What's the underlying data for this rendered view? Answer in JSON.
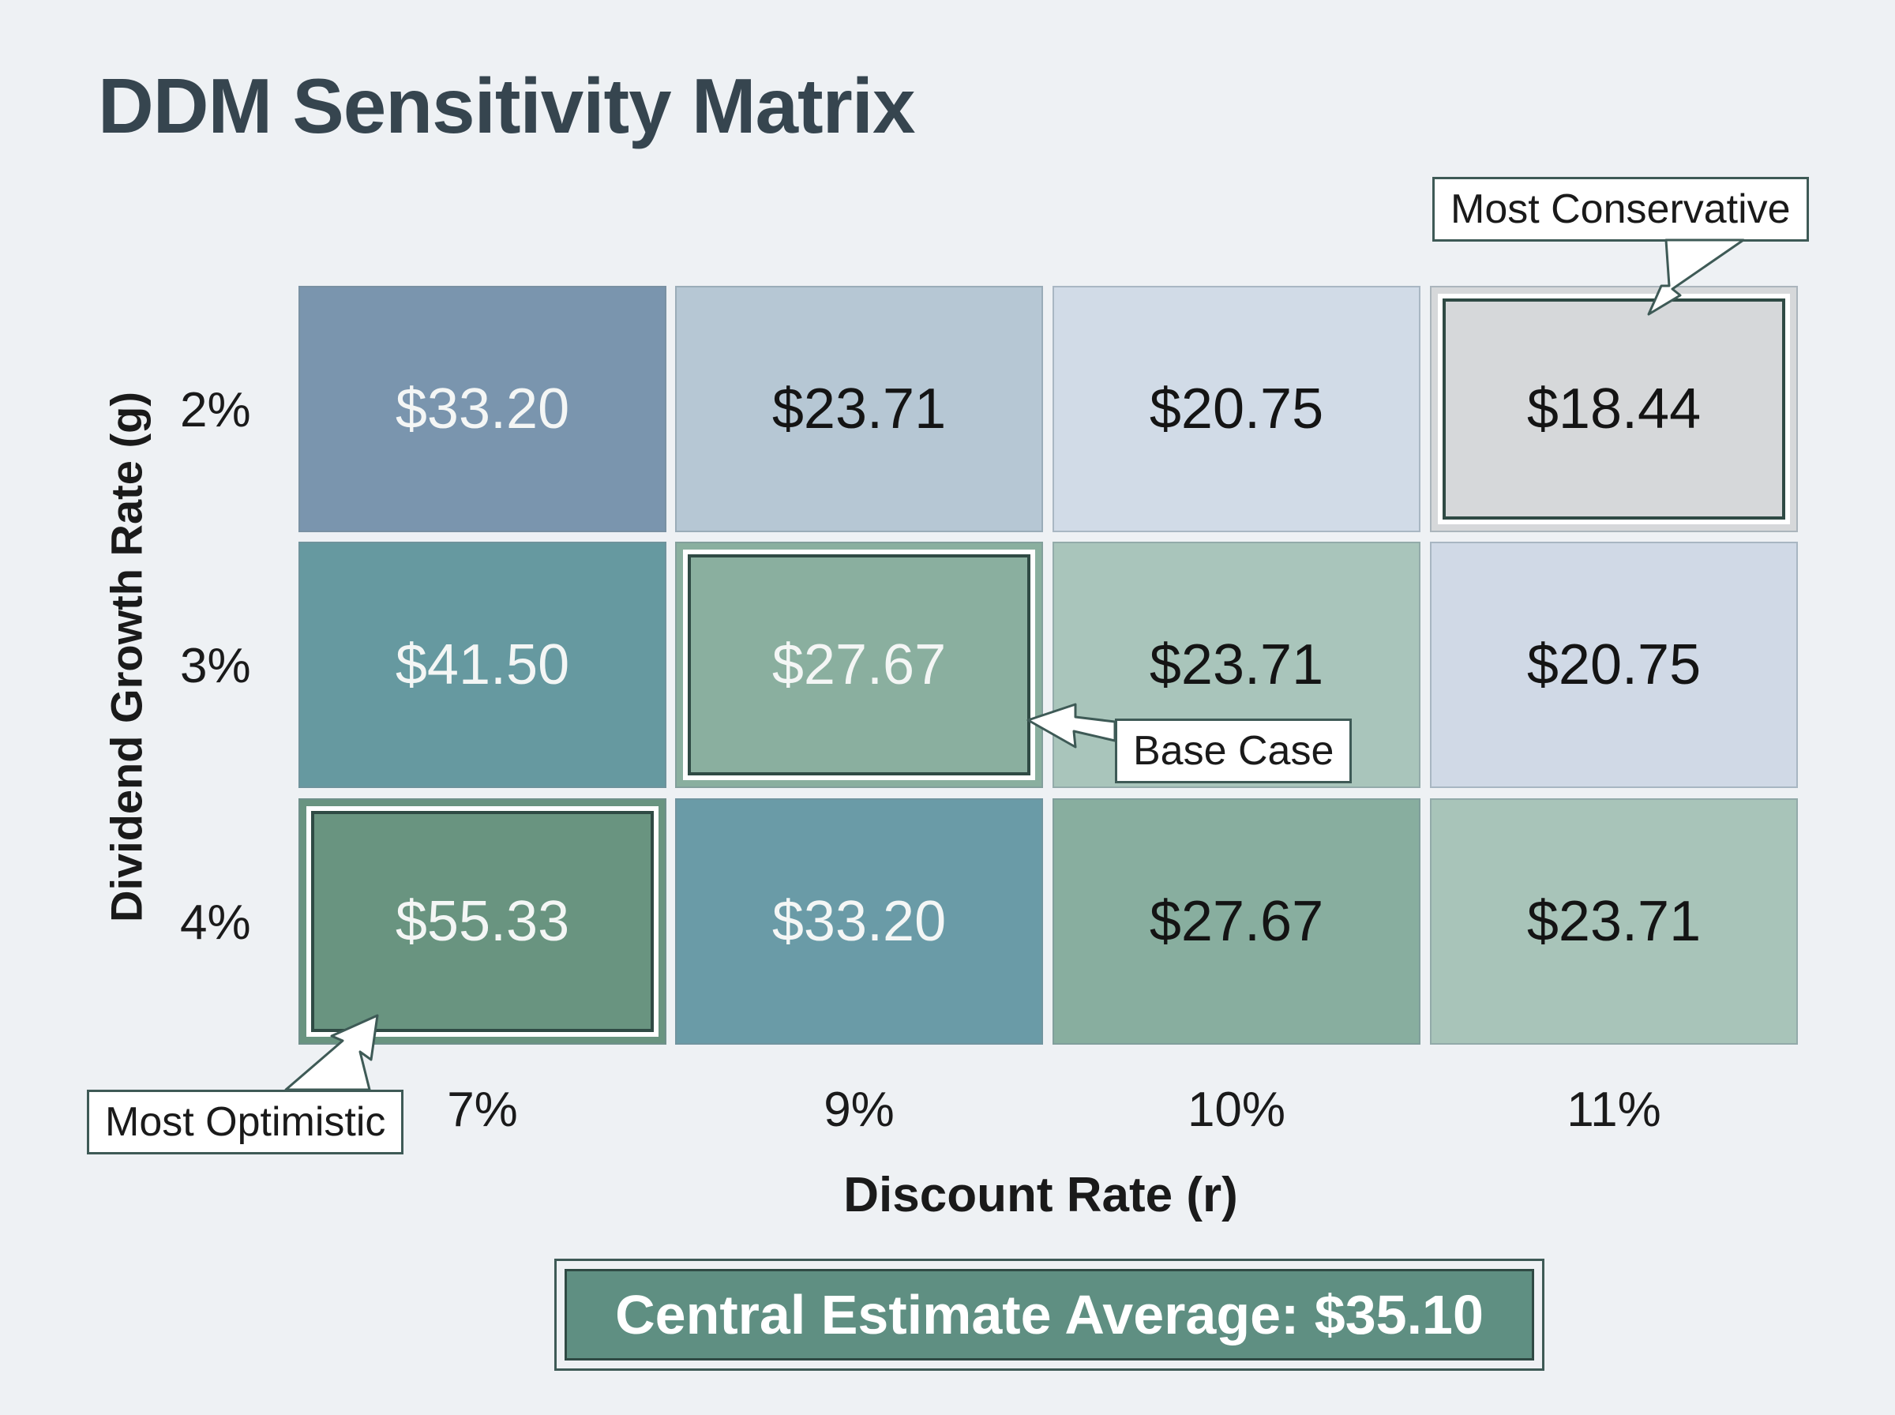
{
  "chart_data": {
    "type": "heatmap",
    "title": "DDM Sensitivity Matrix",
    "xlabel": "Discount Rate (r)",
    "ylabel": "Dividend Growth Rate (g)",
    "x_categories": [
      "7%",
      "9%",
      "10%",
      "11%"
    ],
    "y_categories": [
      "2%",
      "3%",
      "4%"
    ],
    "cells": [
      [
        "$33.20",
        "$23.71",
        "$20.75",
        "$18.44"
      ],
      [
        "$41.50",
        "$27.67",
        "$23.71",
        "$20.75"
      ],
      [
        "$55.33",
        "$33.20",
        "$27.67",
        "$23.71"
      ]
    ],
    "cell_colors": [
      [
        "#7a95ae",
        "#b6c7d4",
        "#d1dbe7",
        "#d6d8da"
      ],
      [
        "#6699a0",
        "#8aaf9f",
        "#a9c5bb",
        "#d0d9e6"
      ],
      [
        "#699480",
        "#6a9ba7",
        "#88ae9f",
        "#a8c4b9"
      ]
    ],
    "text_light": [
      [
        true,
        false,
        false,
        false
      ],
      [
        true,
        true,
        false,
        false
      ],
      [
        true,
        true,
        false,
        false
      ]
    ],
    "annotations": [
      {
        "label": "Most Conservative",
        "row": 0,
        "col": 3
      },
      {
        "label": "Base Case",
        "row": 1,
        "col": 1
      },
      {
        "label": "Most Optimistic",
        "row": 2,
        "col": 0
      }
    ]
  },
  "summary": {
    "text": "Central Estimate Average: $35.10"
  }
}
